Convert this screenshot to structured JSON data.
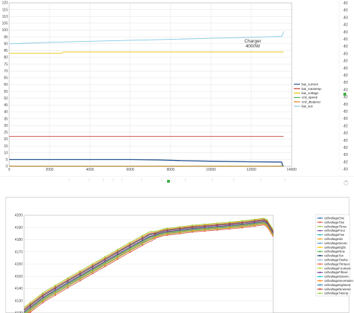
{
  "chart_data": [
    {
      "type": "line",
      "title": "",
      "xlabel": "",
      "ylabel": "",
      "xlim": [
        0,
        14000
      ],
      "ylim": [
        0,
        120
      ],
      "x_ticks": [
        0,
        2000,
        4000,
        6000,
        8000,
        10000,
        12000,
        14000
      ],
      "y_ticks": [
        0,
        5,
        10,
        15,
        20,
        25,
        30,
        35,
        40,
        45,
        50,
        55,
        60,
        65,
        70,
        75,
        80,
        85,
        90,
        95,
        100,
        105,
        110,
        115,
        120
      ],
      "grid": true,
      "legend_position": "right",
      "annotation": {
        "text_line1": "Charger",
        "text_line2": "4000W",
        "x": 11600,
        "y": 89
      },
      "series": [
        {
          "name": "bat_current",
          "color": "#1f4e8c",
          "x": [
            0,
            2000,
            4000,
            6000,
            7400,
            8600,
            10000,
            12000,
            13500,
            13550,
            13600
          ],
          "y": [
            5,
            5,
            5,
            5,
            4.8,
            4.2,
            3.8,
            3.4,
            3.2,
            0.5,
            0.5
          ]
        },
        {
          "name": "bat_maxtemp",
          "color": "#c0392b",
          "x": [
            0,
            13600
          ],
          "y": [
            22,
            22
          ]
        },
        {
          "name": "bat_voltage",
          "color": "#e8c000",
          "x": [
            0,
            2600,
            2700,
            13600
          ],
          "y": [
            83,
            83,
            84,
            84
          ]
        },
        {
          "name": "cml_speed",
          "color": "#4caf50",
          "x": [
            0,
            13600
          ],
          "y": [
            0.3,
            0.3
          ]
        },
        {
          "name": "cml_distance",
          "color": "#e67e22",
          "x": [
            0,
            13600
          ],
          "y": [
            0.1,
            0.1
          ]
        },
        {
          "name": "bat_soc",
          "color": "#7ec8e3",
          "x": [
            0,
            2000,
            4000,
            6000,
            8000,
            10000,
            12000,
            13500,
            13550,
            13600
          ],
          "y": [
            90,
            91,
            91.8,
            92.5,
            93.2,
            94,
            94.7,
            95.3,
            96.5,
            99
          ]
        }
      ],
      "right_axis_labels": [
        "-82",
        "-82",
        "-83",
        "-82",
        "-83",
        "-82",
        "-82",
        "-83",
        "-82",
        "-82",
        "-82",
        "-83",
        "-82",
        "-82",
        "-83",
        "-82",
        "-82",
        "-82",
        "-83",
        "-82",
        "-82",
        "-83",
        "-82",
        "-83"
      ],
      "right_marker": "-0"
    },
    {
      "type": "line",
      "title": "",
      "xlabel": "",
      "ylabel": "",
      "ylim": [
        4120,
        4200
      ],
      "y_ticks": [
        4120,
        4130,
        4140,
        4150,
        4160,
        4170,
        4180,
        4190,
        4200
      ],
      "grid": true,
      "legend_position": "right",
      "series": [
        {
          "name": "cellvoltageOne",
          "color": "#3b6fb6"
        },
        {
          "name": "cellvoltageTwo",
          "color": "#d9534f"
        },
        {
          "name": "cellvoltageThree",
          "color": "#8dc63f"
        },
        {
          "name": "cellvoltageFour",
          "color": "#7b4fa0"
        },
        {
          "name": "cellvoltageFive",
          "color": "#2bb3c0"
        },
        {
          "name": "cellvoltageSix",
          "color": "#f39c12"
        },
        {
          "name": "cellvoltageSeven",
          "color": "#5b9bd5"
        },
        {
          "name": "cellvoltageEight",
          "color": "#f5c400"
        },
        {
          "name": "cellvoltageNine",
          "color": "#4caf50"
        },
        {
          "name": "cellvoltageTen",
          "color": "#1b3a6b"
        },
        {
          "name": "cellvoltageTwelve",
          "color": "#8fb3e0"
        },
        {
          "name": "cellvoltageThirteen",
          "color": "#e8604c"
        },
        {
          "name": "cellvoltageFourteen",
          "color": "#b5d334"
        },
        {
          "name": "cellvoltageFifteen",
          "color": "#6a3d9a"
        },
        {
          "name": "cellvoltageSixteen",
          "color": "#17becf"
        },
        {
          "name": "cellvoltageSeventeen",
          "color": "#ff7f0e"
        },
        {
          "name": "cellvoltageEighteen",
          "color": "#2c7fb8"
        },
        {
          "name": "cellvoltageNineteen",
          "color": "#c0392b"
        },
        {
          "name": "cellvoltageTwenty",
          "color": "#9acd32"
        }
      ],
      "curve_points": [
        [
          0.0,
          4120.5
        ],
        [
          0.08,
          4133
        ],
        [
          0.18,
          4145
        ],
        [
          0.3,
          4159
        ],
        [
          0.42,
          4173
        ],
        [
          0.5,
          4182
        ],
        [
          0.56,
          4186
        ],
        [
          0.68,
          4189
        ],
        [
          0.8,
          4191
        ],
        [
          0.9,
          4193
        ],
        [
          0.97,
          4195
        ],
        [
          1.0,
          4185
        ]
      ]
    }
  ]
}
